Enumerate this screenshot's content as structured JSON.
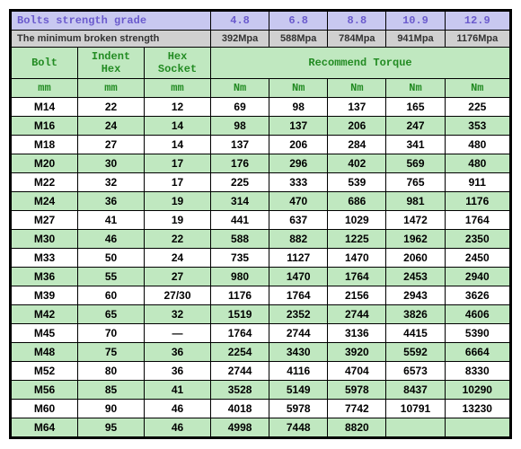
{
  "header": {
    "grade_label": "Bolts strength grade",
    "strength_label": "The minimum broken strength",
    "grades": [
      "4.8",
      "6.8",
      "8.8",
      "10.9",
      "12.9"
    ],
    "strengths": [
      "392Mpa",
      "588Mpa",
      "784Mpa",
      "941Mpa",
      "1176Mpa"
    ],
    "bolt": "Bolt",
    "indent": "Indent Hex",
    "socket": "Hex Socket",
    "torque": "Recommend Torque",
    "mm": "mm",
    "nm": "Nm"
  },
  "rows": [
    {
      "bolt": "M14",
      "indent": "22",
      "socket": "12",
      "t": [
        "69",
        "98",
        "137",
        "165",
        "225"
      ]
    },
    {
      "bolt": "M16",
      "indent": "24",
      "socket": "14",
      "t": [
        "98",
        "137",
        "206",
        "247",
        "353"
      ]
    },
    {
      "bolt": "M18",
      "indent": "27",
      "socket": "14",
      "t": [
        "137",
        "206",
        "284",
        "341",
        "480"
      ]
    },
    {
      "bolt": "M20",
      "indent": "30",
      "socket": "17",
      "t": [
        "176",
        "296",
        "402",
        "569",
        "480"
      ]
    },
    {
      "bolt": "M22",
      "indent": "32",
      "socket": "17",
      "t": [
        "225",
        "333",
        "539",
        "765",
        "911"
      ]
    },
    {
      "bolt": "M24",
      "indent": "36",
      "socket": "19",
      "t": [
        "314",
        "470",
        "686",
        "981",
        "1176"
      ]
    },
    {
      "bolt": "M27",
      "indent": "41",
      "socket": "19",
      "t": [
        "441",
        "637",
        "1029",
        "1472",
        "1764"
      ]
    },
    {
      "bolt": "M30",
      "indent": "46",
      "socket": "22",
      "t": [
        "588",
        "882",
        "1225",
        "1962",
        "2350"
      ]
    },
    {
      "bolt": "M33",
      "indent": "50",
      "socket": "24",
      "t": [
        "735",
        "1127",
        "1470",
        "2060",
        "2450"
      ]
    },
    {
      "bolt": "M36",
      "indent": "55",
      "socket": "27",
      "t": [
        "980",
        "1470",
        "1764",
        "2453",
        "2940"
      ]
    },
    {
      "bolt": "M39",
      "indent": "60",
      "socket": "27/30",
      "t": [
        "1176",
        "1764",
        "2156",
        "2943",
        "3626"
      ]
    },
    {
      "bolt": "M42",
      "indent": "65",
      "socket": "32",
      "t": [
        "1519",
        "2352",
        "2744",
        "3826",
        "4606"
      ]
    },
    {
      "bolt": "M45",
      "indent": "70",
      "socket": "—",
      "t": [
        "1764",
        "2744",
        "3136",
        "4415",
        "5390"
      ]
    },
    {
      "bolt": "M48",
      "indent": "75",
      "socket": "36",
      "t": [
        "2254",
        "3430",
        "3920",
        "5592",
        "6664"
      ]
    },
    {
      "bolt": "M52",
      "indent": "80",
      "socket": "36",
      "t": [
        "2744",
        "4116",
        "4704",
        "6573",
        "8330"
      ]
    },
    {
      "bolt": "M56",
      "indent": "85",
      "socket": "41",
      "t": [
        "3528",
        "5149",
        "5978",
        "8437",
        "10290"
      ]
    },
    {
      "bolt": "M60",
      "indent": "90",
      "socket": "46",
      "t": [
        "4018",
        "5978",
        "7742",
        "10791",
        "13230"
      ]
    },
    {
      "bolt": "M64",
      "indent": "95",
      "socket": "46",
      "t": [
        "4998",
        "7448",
        "8820",
        "",
        ""
      ]
    }
  ],
  "colors": {
    "lilac": "#c8c8f0",
    "grey": "#d0d0d0",
    "green": "#c0e8c0",
    "white": "#ffffff"
  }
}
